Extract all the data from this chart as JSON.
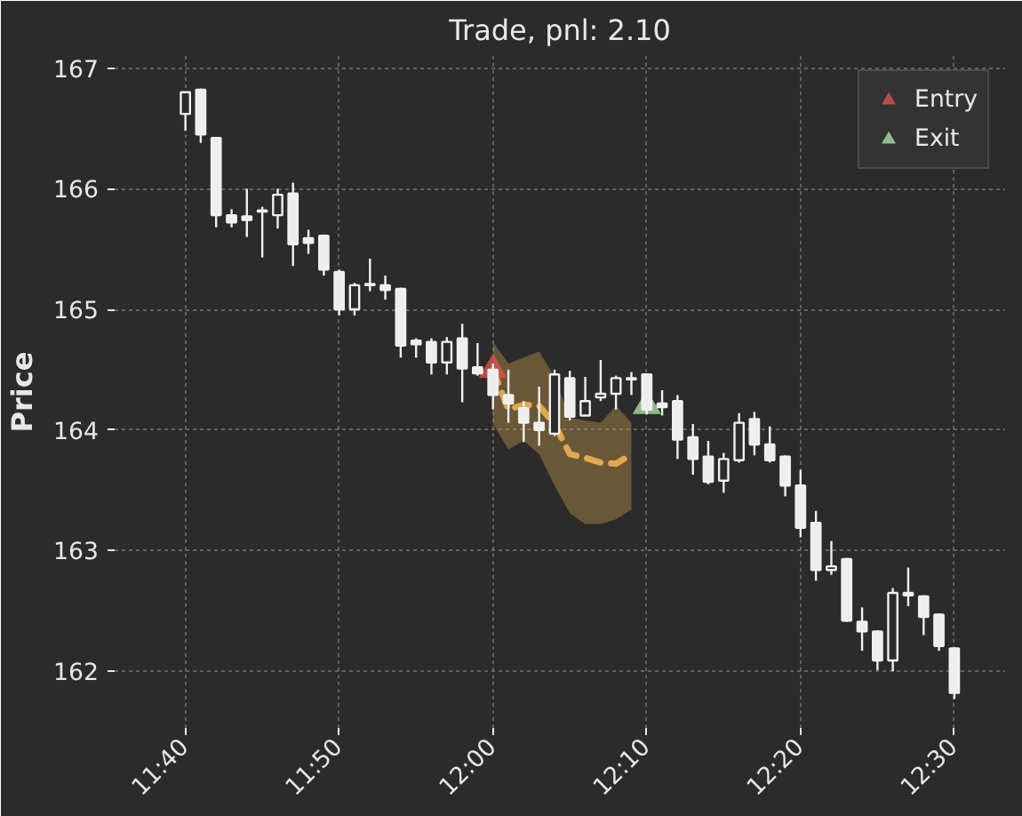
{
  "chart_data": {
    "type": "candlestick",
    "title": "Trade, pnl: 2.10",
    "ylabel": "Price",
    "x": [
      11.6667,
      11.6833,
      11.7,
      11.7167,
      11.7333,
      11.75,
      11.7667,
      11.7833,
      11.8,
      11.8167,
      11.8333,
      11.85,
      11.8667,
      11.8833,
      11.9,
      11.9167,
      11.9333,
      11.95,
      11.9667,
      11.9833,
      12.0,
      12.0167,
      12.0333,
      12.05,
      12.0667,
      12.0833,
      12.1,
      12.1167,
      12.1333,
      12.15,
      12.1667,
      12.1833,
      12.2,
      12.2167,
      12.2333,
      12.25,
      12.2667,
      12.2833,
      12.3,
      12.3167,
      12.3333,
      12.35,
      12.3667,
      12.3833,
      12.4,
      12.4167,
      12.4333,
      12.45,
      12.4667,
      12.4833,
      12.5
    ],
    "ohlc": [
      [
        166.62,
        166.8,
        166.48,
        166.8
      ],
      [
        166.82,
        166.83,
        166.38,
        166.45
      ],
      [
        166.42,
        166.43,
        165.68,
        165.78
      ],
      [
        165.78,
        165.83,
        165.68,
        165.72
      ],
      [
        165.77,
        166.0,
        165.6,
        165.74
      ],
      [
        165.82,
        165.85,
        165.43,
        165.81
      ],
      [
        165.78,
        166.0,
        165.67,
        165.95
      ],
      [
        165.96,
        166.05,
        165.36,
        165.54
      ],
      [
        165.59,
        165.66,
        165.46,
        165.55
      ],
      [
        165.61,
        165.62,
        165.28,
        165.33
      ],
      [
        165.31,
        165.33,
        164.95,
        165.0
      ],
      [
        165.0,
        165.22,
        164.95,
        165.2
      ],
      [
        165.2,
        165.42,
        165.15,
        165.21
      ],
      [
        165.2,
        165.28,
        165.08,
        165.16
      ],
      [
        165.17,
        165.18,
        164.6,
        164.7
      ],
      [
        164.74,
        164.76,
        164.6,
        164.71
      ],
      [
        164.73,
        164.76,
        164.46,
        164.56
      ],
      [
        164.56,
        164.77,
        164.46,
        164.73
      ],
      [
        164.76,
        164.88,
        164.23,
        164.51
      ],
      [
        164.52,
        164.72,
        164.45,
        164.47
      ],
      [
        164.5,
        164.55,
        164.17,
        164.29
      ],
      [
        164.29,
        164.5,
        164.06,
        164.22
      ],
      [
        164.18,
        164.24,
        163.9,
        164.06
      ],
      [
        164.06,
        164.36,
        163.87,
        164.0
      ],
      [
        163.97,
        164.5,
        163.95,
        164.46
      ],
      [
        164.43,
        164.49,
        164.08,
        164.11
      ],
      [
        164.12,
        164.44,
        164.12,
        164.24
      ],
      [
        164.27,
        164.58,
        164.24,
        164.3
      ],
      [
        164.3,
        164.45,
        164.17,
        164.43
      ],
      [
        164.43,
        164.48,
        164.29,
        164.42
      ],
      [
        164.46,
        164.47,
        164.13,
        164.17
      ],
      [
        164.22,
        164.33,
        164.12,
        164.19
      ],
      [
        164.24,
        164.29,
        163.76,
        163.92
      ],
      [
        163.94,
        164.05,
        163.63,
        163.76
      ],
      [
        163.78,
        163.91,
        163.55,
        163.57
      ],
      [
        163.58,
        163.81,
        163.48,
        163.76
      ],
      [
        163.75,
        164.14,
        163.73,
        164.06
      ],
      [
        164.09,
        164.15,
        163.79,
        163.88
      ],
      [
        163.88,
        164.03,
        163.73,
        163.75
      ],
      [
        163.78,
        163.79,
        163.45,
        163.54
      ],
      [
        163.54,
        163.67,
        163.11,
        163.19
      ],
      [
        163.23,
        163.33,
        162.75,
        162.84
      ],
      [
        162.84,
        163.08,
        162.8,
        162.87
      ],
      [
        162.93,
        162.94,
        162.41,
        162.42
      ],
      [
        162.41,
        162.53,
        162.17,
        162.33
      ],
      [
        162.33,
        162.34,
        162.01,
        162.09
      ],
      [
        162.09,
        162.69,
        162.0,
        162.65
      ],
      [
        162.65,
        162.86,
        162.54,
        162.63
      ],
      [
        162.62,
        162.63,
        162.3,
        162.45
      ],
      [
        162.47,
        162.48,
        162.17,
        162.21
      ],
      [
        162.19,
        162.2,
        161.77,
        161.82
      ]
    ],
    "series": [
      {
        "type": "line",
        "color": "#e0a94f",
        "line_style": "dashed",
        "x": [
          12.0,
          12.0167,
          12.0333,
          12.05,
          12.0667,
          12.0833,
          12.1,
          12.1167,
          12.1333,
          12.15
        ],
        "values": [
          164.5,
          164.17,
          164.21,
          164.2,
          164.05,
          163.8,
          163.77,
          163.73,
          163.72,
          163.8
        ],
        "lower": [
          164.05,
          163.84,
          163.91,
          163.8,
          163.54,
          163.31,
          163.22,
          163.22,
          163.26,
          163.34
        ],
        "upper": [
          164.73,
          164.55,
          164.6,
          164.65,
          164.44,
          164.1,
          164.08,
          164.06,
          164.2,
          164.06
        ]
      },
      {
        "type": "scatter",
        "name": "Entry",
        "color": "#d9534f",
        "marker": "triangle",
        "x": [
          12.0
        ],
        "values": [
          164.5
        ]
      },
      {
        "type": "scatter",
        "name": "Exit",
        "color": "#a8e0a0",
        "marker": "triangle",
        "x": [
          12.1667
        ],
        "values": [
          164.2
        ]
      }
    ],
    "xlim": [
      11.59,
      12.555
    ],
    "ylim": [
      161.53,
      167.1
    ],
    "xticks": [
      {
        "value": 11.6667,
        "label": "11:40"
      },
      {
        "value": 11.8333,
        "label": "11:50"
      },
      {
        "value": 12.0,
        "label": "12:00"
      },
      {
        "value": 12.1667,
        "label": "12:10"
      },
      {
        "value": 12.3333,
        "label": "12:20"
      },
      {
        "value": 12.5,
        "label": "12:30"
      }
    ],
    "yticks": [
      162,
      163,
      164,
      165,
      166,
      167
    ],
    "grid": true,
    "legend": "top right"
  }
}
